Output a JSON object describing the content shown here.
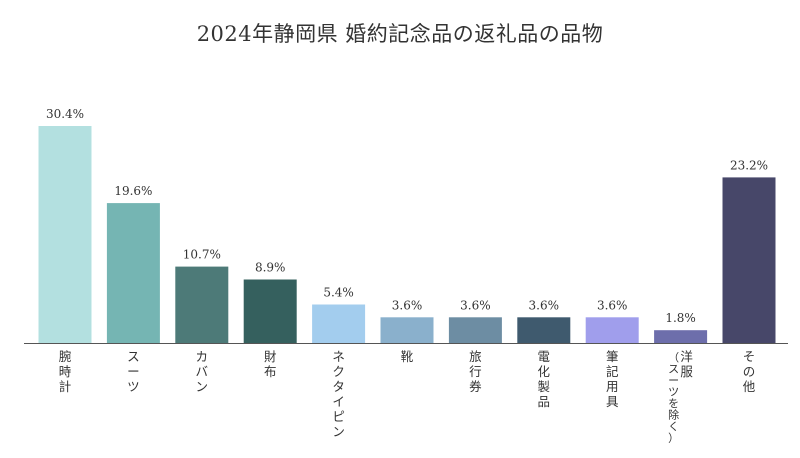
{
  "chart_data": {
    "type": "bar",
    "title": "2024年静岡県 婚約記念品の返礼品の品物",
    "xlabel": "",
    "ylabel": "",
    "ylim": [
      0,
      32
    ],
    "unit": "%",
    "categories": [
      "腕時計",
      "スーツ",
      "カバン",
      "財布",
      "ネクタイピン",
      "靴",
      "旅行券",
      "電化製品",
      "筆記用具",
      "洋服",
      "その他"
    ],
    "category_notes": [
      "",
      "",
      "",
      "",
      "",
      "",
      "",
      "",
      "",
      "（スーツを除く）",
      ""
    ],
    "values": [
      30.4,
      19.6,
      10.7,
      8.9,
      5.4,
      3.6,
      3.6,
      3.6,
      3.6,
      1.8,
      23.2
    ],
    "value_labels": [
      "30.4%",
      "19.6%",
      "10.7%",
      "8.9%",
      "5.4%",
      "3.6%",
      "3.6%",
      "3.6%",
      "3.6%",
      "1.8%",
      "23.2%"
    ],
    "colors": [
      "#b3e0e0",
      "#75b5b3",
      "#4d7a78",
      "#35605e",
      "#a3cdee",
      "#8ab0cc",
      "#6d8da3",
      "#3f5a6e",
      "#a09eec",
      "#6d6eab",
      "#474769"
    ],
    "axis_color": "#555555",
    "grid": false,
    "legend": "none"
  }
}
